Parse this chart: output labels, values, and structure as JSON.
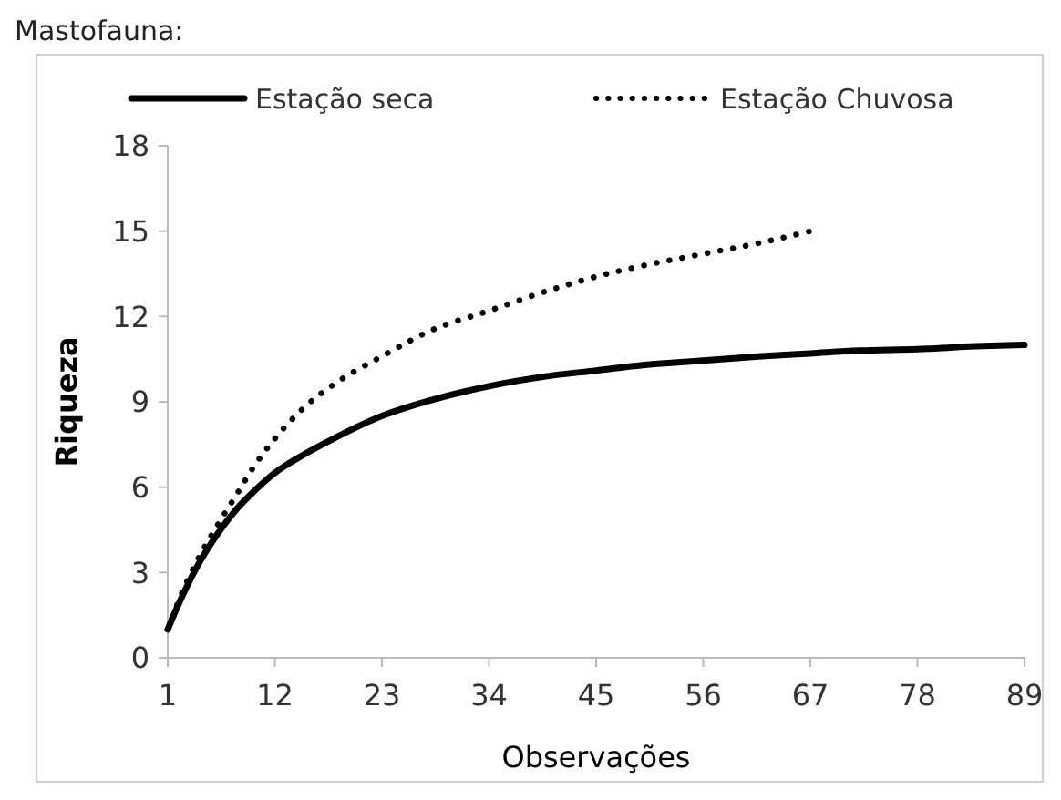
{
  "chart_data": {
    "type": "line",
    "title": "Mastofauna:",
    "xlabel": "Observações",
    "ylabel": "Riqueza",
    "xlim": [
      1,
      89
    ],
    "xticks": [
      1,
      12,
      23,
      34,
      45,
      56,
      67,
      78,
      89
    ],
    "ylim": [
      0,
      18
    ],
    "yticks": [
      0,
      3,
      6,
      9,
      12,
      15,
      18
    ],
    "grid": false,
    "legend": "top",
    "series": [
      {
        "name": "Estação seca",
        "color": "#000000",
        "line_style": "solid",
        "x": [
          1,
          2,
          4,
          6,
          8,
          10,
          12,
          15,
          18,
          23,
          28,
          34,
          40,
          45,
          50,
          56,
          62,
          67,
          72,
          78,
          84,
          89
        ],
        "values": [
          1,
          1.8,
          3.2,
          4.3,
          5.2,
          5.9,
          6.5,
          7.15,
          7.7,
          8.5,
          9.05,
          9.55,
          9.9,
          10.1,
          10.3,
          10.45,
          10.6,
          10.7,
          10.8,
          10.85,
          10.95,
          11
        ]
      },
      {
        "name": "Estação Chuvosa",
        "color": "#000000",
        "line_style": "dotted",
        "x": [
          1,
          2,
          4,
          6,
          8,
          10,
          12,
          15,
          18,
          23,
          28,
          34,
          40,
          45,
          50,
          56,
          62,
          67
        ],
        "values": [
          1,
          1.9,
          3.4,
          4.6,
          5.7,
          6.8,
          7.7,
          8.8,
          9.6,
          10.6,
          11.5,
          12.2,
          12.9,
          13.4,
          13.8,
          14.2,
          14.6,
          15
        ]
      }
    ]
  }
}
